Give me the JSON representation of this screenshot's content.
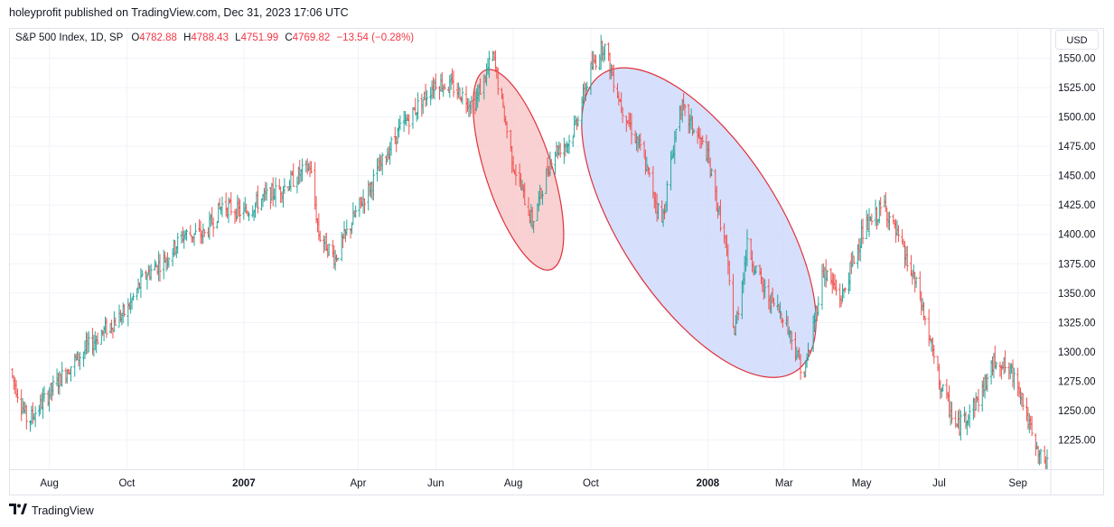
{
  "header": {
    "published_by": "holeyprofit published on TradingView.com, Dec 31, 2023 17:06 UTC"
  },
  "legend": {
    "symbol": "S&P 500 Index, 1D, SP",
    "o_label": "O",
    "o_value": "4782.88",
    "h_label": "H",
    "h_value": "4788.43",
    "l_label": "L",
    "l_value": "4751.99",
    "c_label": "C",
    "c_value": "4769.82",
    "change": "−13.54 (−0.28%)"
  },
  "currency_button": {
    "label": "USD"
  },
  "footer": {
    "brand": "TradingView"
  },
  "colors": {
    "up": "#26a69a",
    "down": "#ef5350",
    "text": "#131722",
    "red_ellipse_fill": "#f8c9ca",
    "red_ellipse_stroke": "#e0313d",
    "blue_ellipse_fill": "#cfd9fb",
    "blue_ellipse_stroke": "#e0313d"
  },
  "chart_data": {
    "type": "candlestick",
    "y_range": [
      1200,
      1575
    ],
    "y_ticks": [
      1225,
      1250,
      1275,
      1300,
      1325,
      1350,
      1375,
      1400,
      1425,
      1450,
      1475,
      1500,
      1525,
      1550
    ],
    "y_tick_labels": [
      "1225.00",
      "1250.00",
      "1275.00",
      "1300.00",
      "1325.00",
      "1350.00",
      "1375.00",
      "1400.00",
      "1425.00",
      "1450.00",
      "1475.00",
      "1500.00",
      "1525.00",
      "1550.00"
    ],
    "x_range": [
      "2006-07-01",
      "2008-09-24"
    ],
    "x_ticks": [
      {
        "date": "2006-08-01",
        "label": "Aug",
        "bold": false
      },
      {
        "date": "2006-10-01",
        "label": "Oct",
        "bold": false
      },
      {
        "date": "2007-01-01",
        "label": "2007",
        "bold": true
      },
      {
        "date": "2007-04-01",
        "label": "Apr",
        "bold": false
      },
      {
        "date": "2007-06-01",
        "label": "Jun",
        "bold": false
      },
      {
        "date": "2007-08-01",
        "label": "Aug",
        "bold": false
      },
      {
        "date": "2007-10-01",
        "label": "Oct",
        "bold": false
      },
      {
        "date": "2008-01-01",
        "label": "2008",
        "bold": true
      },
      {
        "date": "2008-03-01",
        "label": "Mar",
        "bold": false
      },
      {
        "date": "2008-05-01",
        "label": "May",
        "bold": false
      },
      {
        "date": "2008-07-01",
        "label": "Jul",
        "bold": false
      },
      {
        "date": "2008-09-01",
        "label": "Sep",
        "bold": false
      }
    ],
    "anchors": [
      [
        "2006-07-01",
        1285
      ],
      [
        "2006-07-15",
        1240
      ],
      [
        "2006-08-01",
        1265
      ],
      [
        "2006-08-15",
        1285
      ],
      [
        "2006-09-01",
        1305
      ],
      [
        "2006-09-15",
        1320
      ],
      [
        "2006-10-01",
        1335
      ],
      [
        "2006-10-15",
        1365
      ],
      [
        "2006-11-01",
        1380
      ],
      [
        "2006-11-15",
        1400
      ],
      [
        "2006-12-01",
        1400
      ],
      [
        "2006-12-15",
        1425
      ],
      [
        "2007-01-01",
        1418
      ],
      [
        "2007-01-15",
        1430
      ],
      [
        "2007-02-01",
        1440
      ],
      [
        "2007-02-22",
        1458
      ],
      [
        "2007-03-01",
        1400
      ],
      [
        "2007-03-14",
        1380
      ],
      [
        "2007-03-31",
        1420
      ],
      [
        "2007-04-15",
        1450
      ],
      [
        "2007-05-01",
        1485
      ],
      [
        "2007-05-15",
        1505
      ],
      [
        "2007-06-01",
        1530
      ],
      [
        "2007-06-15",
        1525
      ],
      [
        "2007-07-01",
        1510
      ],
      [
        "2007-07-16",
        1552
      ],
      [
        "2007-08-01",
        1460
      ],
      [
        "2007-08-16",
        1410
      ],
      [
        "2007-09-01",
        1470
      ],
      [
        "2007-09-15",
        1480
      ],
      [
        "2007-10-01",
        1540
      ],
      [
        "2007-10-11",
        1562
      ],
      [
        "2007-10-25",
        1510
      ],
      [
        "2007-11-10",
        1470
      ],
      [
        "2007-11-26",
        1410
      ],
      [
        "2007-12-10",
        1510
      ],
      [
        "2007-12-31",
        1470
      ],
      [
        "2008-01-15",
        1390
      ],
      [
        "2008-01-22",
        1315
      ],
      [
        "2008-02-01",
        1390
      ],
      [
        "2008-02-15",
        1350
      ],
      [
        "2008-03-01",
        1330
      ],
      [
        "2008-03-17",
        1280
      ],
      [
        "2008-04-01",
        1370
      ],
      [
        "2008-04-15",
        1345
      ],
      [
        "2008-05-01",
        1400
      ],
      [
        "2008-05-19",
        1425
      ],
      [
        "2008-06-01",
        1390
      ],
      [
        "2008-06-15",
        1350
      ],
      [
        "2008-07-01",
        1275
      ],
      [
        "2008-07-15",
        1235
      ],
      [
        "2008-08-01",
        1260
      ],
      [
        "2008-08-15",
        1295
      ],
      [
        "2008-09-01",
        1275
      ],
      [
        "2008-09-15",
        1215
      ],
      [
        "2008-09-24",
        1205
      ]
    ],
    "annotations": [
      {
        "shape": "ellipse",
        "color": "red",
        "from": "2007-07-10",
        "to": "2007-08-31",
        "high": 1550,
        "low": 1360
      },
      {
        "shape": "ellipse",
        "color": "blue",
        "from": "2007-09-20",
        "to": "2008-03-30",
        "high": 1565,
        "low": 1255
      }
    ]
  }
}
